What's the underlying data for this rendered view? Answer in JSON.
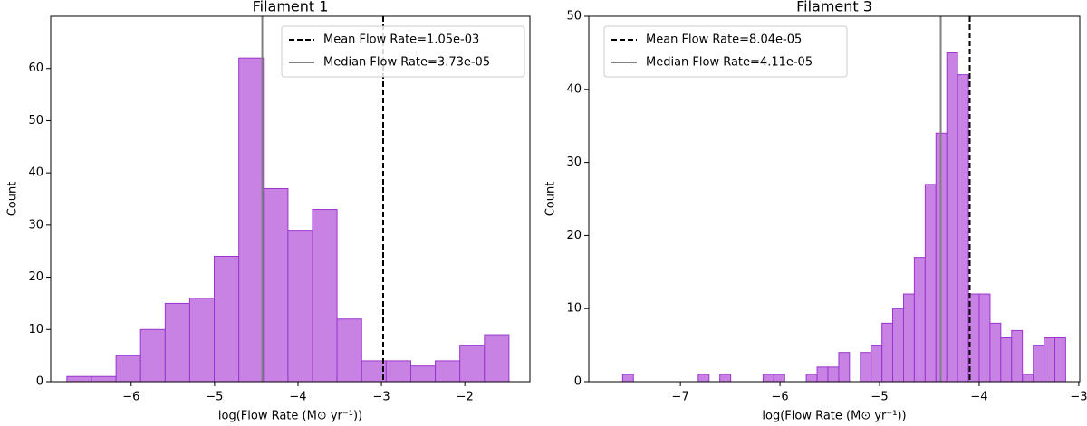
{
  "chart_data": [
    {
      "type": "histogram",
      "title": "Filament 1",
      "xlabel": "log(Flow Rate (M⊙ yr⁻¹))",
      "ylabel": "Count",
      "bins": [
        -6.77,
        -6.476,
        -6.181,
        -5.887,
        -5.592,
        -5.298,
        -5.004,
        -4.709,
        -4.415,
        -4.12,
        -3.826,
        -3.532,
        -3.237,
        -2.943,
        -2.648,
        -2.354,
        -2.06,
        -1.765,
        -1.471
      ],
      "counts": [
        1,
        1,
        5,
        10,
        15,
        16,
        24,
        62,
        37,
        29,
        33,
        12,
        4,
        4,
        3,
        4,
        7,
        9
      ],
      "color": "#c882e3",
      "edgecolor": "#9a35cf",
      "xlim": [
        -6.964,
        -1.22
      ],
      "ylim": [
        0,
        70
      ],
      "xticks": [
        {
          "value": -6,
          "label": "−6"
        },
        {
          "value": -5,
          "label": "−5"
        },
        {
          "value": -4,
          "label": "−4"
        },
        {
          "value": -3,
          "label": "−3"
        },
        {
          "value": -2,
          "label": "−2"
        }
      ],
      "yticks": [
        0,
        10,
        20,
        30,
        40,
        50,
        60
      ],
      "vlines": [
        {
          "name": "Mean Flow Rate=1.05e-03",
          "value": -2.979,
          "color": "#000000",
          "style": "dashed"
        },
        {
          "name": "Median Flow Rate=3.73e-05",
          "value": -4.428,
          "color": "#808080",
          "style": "solid"
        }
      ],
      "legend": "upper right"
    },
    {
      "type": "histogram",
      "title": "Filament 3",
      "xlabel": "log(Flow Rate (M⊙ yr⁻¹))",
      "ylabel": "Count",
      "bins": [
        -7.58,
        -7.472,
        -7.363,
        -7.255,
        -7.146,
        -7.038,
        -6.929,
        -6.821,
        -6.712,
        -6.604,
        -6.495,
        -6.387,
        -6.278,
        -6.17,
        -6.061,
        -5.953,
        -5.844,
        -5.736,
        -5.627,
        -5.519,
        -5.41,
        -5.302,
        -5.193,
        -5.085,
        -4.976,
        -4.868,
        -4.759,
        -4.651,
        -4.542,
        -4.434,
        -4.325,
        -4.217,
        -4.108,
        -4.0,
        -3.891,
        -3.783,
        -3.674,
        -3.566,
        -3.457,
        -3.349,
        -3.24,
        -3.132
      ],
      "counts": [
        1,
        0,
        0,
        0,
        0,
        0,
        0,
        1,
        0,
        1,
        0,
        0,
        0,
        1,
        1,
        0,
        0,
        1,
        2,
        2,
        4,
        0,
        4,
        5,
        8,
        10,
        12,
        17,
        27,
        34,
        45,
        42,
        12,
        12,
        8,
        6,
        7,
        1,
        5,
        6,
        6
      ],
      "color": "#c882e3",
      "edgecolor": "#9a35cf",
      "xlim": [
        -7.92,
        -2.99
      ],
      "ylim": [
        0,
        50
      ],
      "xticks": [
        {
          "value": -7,
          "label": "−7"
        },
        {
          "value": -6,
          "label": "−6"
        },
        {
          "value": -5,
          "label": "−5"
        },
        {
          "value": -4,
          "label": "−4"
        },
        {
          "value": -3,
          "label": "−3"
        }
      ],
      "yticks": [
        0,
        10,
        20,
        30,
        40,
        50
      ],
      "vlines": [
        {
          "name": "Mean Flow Rate=8.04e-05",
          "value": -4.095,
          "color": "#000000",
          "style": "dashed"
        },
        {
          "name": "Median Flow Rate=4.11e-05",
          "value": -4.386,
          "color": "#808080",
          "style": "solid"
        }
      ],
      "legend": "upper left"
    }
  ]
}
